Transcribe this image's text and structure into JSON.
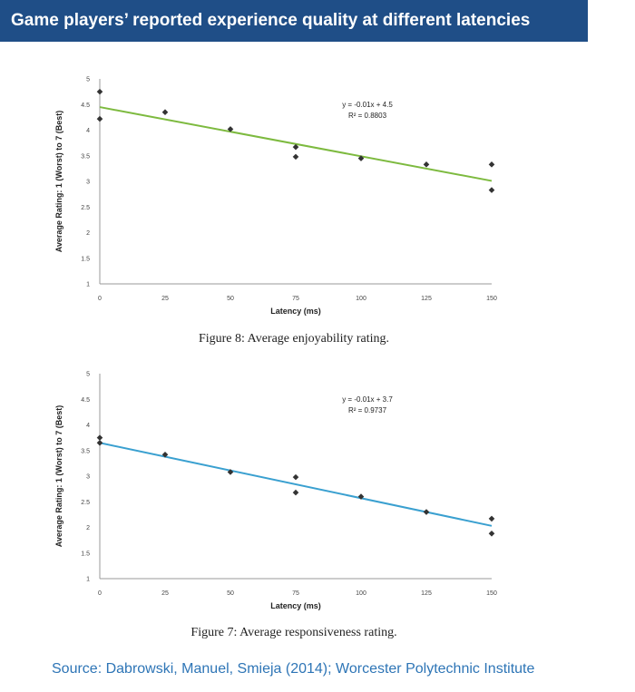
{
  "header": {
    "title": "Game players’ reported experience quality at different latencies",
    "bg_color": "#1f4e87"
  },
  "footer": {
    "source": "Source: Dabrowski, Manuel, Smieja (2014); Worcester Polytechnic Institute",
    "color": "#2e75b6"
  },
  "chart_data": [
    {
      "type": "scatter",
      "caption": "Figure 8: Average enjoyability rating.",
      "xlabel": "Latency (ms)",
      "ylabel": "Average Rating: 1 (Worst) to 7 (Best)",
      "xlim": [
        0,
        150
      ],
      "ylim": [
        1,
        5
      ],
      "xticks": [
        "0",
        "25",
        "50",
        "75",
        "100",
        "125",
        "150"
      ],
      "yticks": [
        "1",
        "1.5",
        "2",
        "2.5",
        "3",
        "3.5",
        "4",
        "4.5",
        "5"
      ],
      "grid": false,
      "points": [
        {
          "x": 0,
          "y": 4.75
        },
        {
          "x": 0,
          "y": 4.22
        },
        {
          "x": 25,
          "y": 4.35
        },
        {
          "x": 50,
          "y": 4.02
        },
        {
          "x": 75,
          "y": 3.67
        },
        {
          "x": 75,
          "y": 3.48
        },
        {
          "x": 100,
          "y": 3.45
        },
        {
          "x": 125,
          "y": 3.33
        },
        {
          "x": 150,
          "y": 3.33
        },
        {
          "x": 150,
          "y": 2.83
        }
      ],
      "trendline": {
        "slope": -0.0096,
        "intercept": 4.45,
        "color": "#7dba3f"
      },
      "equation": "y = -0.01x + 4.5",
      "r2": "R² = 0.8803"
    },
    {
      "type": "scatter",
      "caption": "Figure 7: Average responsiveness rating.",
      "xlabel": "Latency (ms)",
      "ylabel": "Average Rating: 1 (Worst) to 7 (Best)",
      "xlim": [
        0,
        150
      ],
      "ylim": [
        1,
        5
      ],
      "xticks": [
        "0",
        "25",
        "50",
        "75",
        "100",
        "125",
        "150"
      ],
      "yticks": [
        "1",
        "1.5",
        "2",
        "2.5",
        "3",
        "3.5",
        "4",
        "4.5",
        "5"
      ],
      "grid": false,
      "points": [
        {
          "x": 0,
          "y": 3.75
        },
        {
          "x": 0,
          "y": 3.65
        },
        {
          "x": 25,
          "y": 3.42
        },
        {
          "x": 50,
          "y": 3.08
        },
        {
          "x": 75,
          "y": 2.98
        },
        {
          "x": 75,
          "y": 2.68
        },
        {
          "x": 100,
          "y": 2.6
        },
        {
          "x": 125,
          "y": 2.3
        },
        {
          "x": 150,
          "y": 2.17
        },
        {
          "x": 150,
          "y": 1.88
        }
      ],
      "trendline": {
        "slope": -0.0108,
        "intercept": 3.65,
        "color": "#3aa0d0"
      },
      "equation": "y = -0.01x + 3.7",
      "r2": "R² = 0.9737"
    }
  ]
}
